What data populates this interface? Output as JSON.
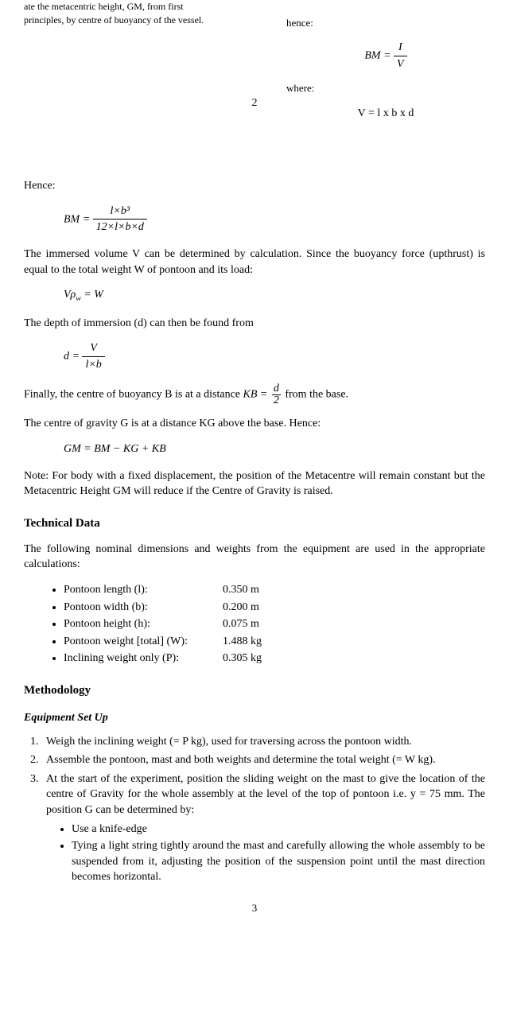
{
  "top": {
    "leftText": "ate the metacentric height, GM, from first principles, by centre of buoyancy of the vessel.",
    "henceLabel": "hence:",
    "bmFormula": {
      "left": "BM =",
      "num": "I",
      "den": "V"
    },
    "whereLabel": "where:",
    "vFormula": "V = l x b x d",
    "pageNum2": "2"
  },
  "body": {
    "henceLabel": "Hence:",
    "bmFormula": {
      "left": "BM =",
      "num": "l×b³",
      "den": "12×l×b×d"
    },
    "para1": "The immersed volume V can be determined by calculation. Since the buoyancy force (upthrust) is equal to the total weight W of pontoon and its load:",
    "eq1": "Vρ_w = W",
    "para2": "The depth of immersion (d) can then be found from",
    "dFormula": {
      "left": "d =",
      "num": "V",
      "den": "l×b"
    },
    "para3a": "Finally, the centre of buoyancy B is at a distance",
    "kbLeft": "KB =",
    "kbNum": "d",
    "kbDen": "2",
    "para3b": "from the base.",
    "para4": "The centre of gravity G is at a distance KG above the base. Hence:",
    "eq2": "GM = BM − KG + KB",
    "note": "Note: For body with a fixed displacement, the position of the Metacentre will remain constant but the Metacentric Height GM will reduce if the Centre of Gravity is raised."
  },
  "technical": {
    "title": "Technical Data",
    "intro": "The following nominal dimensions and weights from the equipment are used in the appropriate calculations:",
    "items": [
      {
        "label": "Pontoon length (l):",
        "value": "0.350 m"
      },
      {
        "label": "Pontoon width (b):",
        "value": "0.200 m"
      },
      {
        "label": "Pontoon height (h):",
        "value": "0.075 m"
      },
      {
        "label": "Pontoon weight [total] (W):",
        "value": "1.488 kg"
      },
      {
        "label": "Inclining weight only (P):",
        "value": "0.305 kg"
      }
    ]
  },
  "methodology": {
    "title": "Methodology",
    "subtitle": "Equipment Set Up",
    "steps": [
      "Weigh the inclining weight (= P kg), used for traversing across the pontoon width.",
      "Assemble the pontoon, mast and both weights and determine the total weight (= W kg).",
      "At the start of the experiment, position the sliding weight on the mast to give the location of the centre of Gravity for the whole assembly at the level of the top of pontoon i.e. y = 75 mm. The position G can be determined by:"
    ],
    "subSteps": [
      "Use a knife-edge",
      "Tying a light string tightly around the mast and carefully allowing the whole assembly to be suspended from it, adjusting the position of the suspension point until the mast direction becomes horizontal."
    ]
  },
  "pageNum3": "3"
}
